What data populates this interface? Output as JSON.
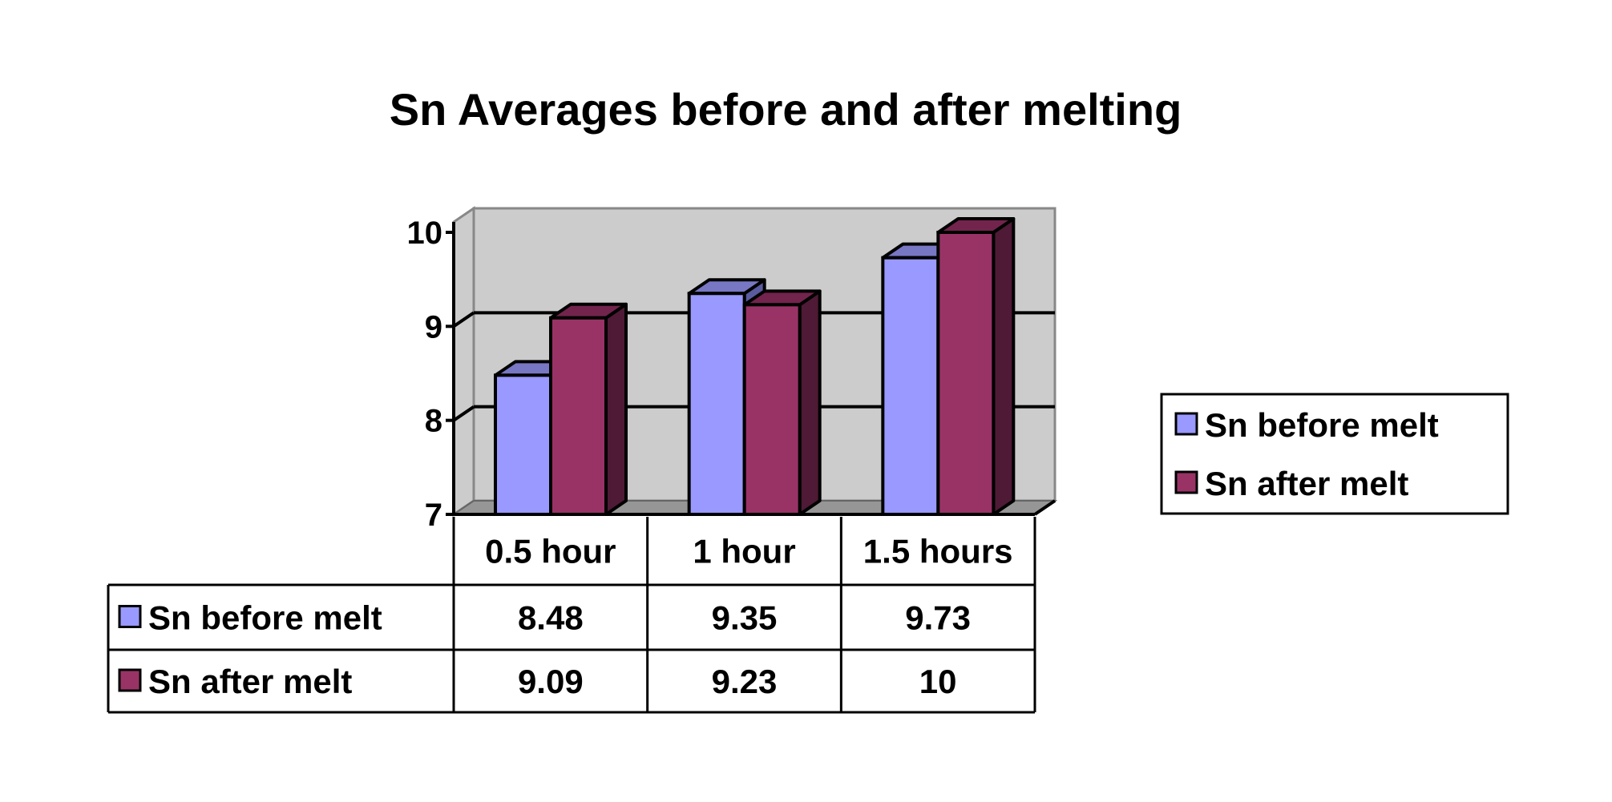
{
  "chart_data": {
    "type": "bar",
    "style": "3d-clustered-column-with-data-table",
    "title": "Sn Averages before and after melting",
    "categories": [
      "0.5 hour",
      "1 hour",
      "1.5 hours"
    ],
    "series": [
      {
        "name": "Sn before melt",
        "values": [
          8.48,
          9.35,
          9.73
        ],
        "color": "#9999FF",
        "top_color": "#7777C4",
        "side_color": "#5A5A9E"
      },
      {
        "name": "Sn after melt",
        "values": [
          9.09,
          9.23,
          10
        ],
        "color": "#993366",
        "top_color": "#72244C",
        "side_color": "#4E1A35"
      }
    ],
    "table_values": [
      [
        "8.48",
        "9.35",
        "9.73"
      ],
      [
        "9.09",
        "9.23",
        "10"
      ]
    ],
    "ylim": [
      7,
      10
    ],
    "yticks": [
      "7",
      "8",
      "9",
      "10"
    ],
    "grid": true,
    "wall_color": "#CCCCCC",
    "floor_color": "#969696",
    "legend": "right"
  }
}
